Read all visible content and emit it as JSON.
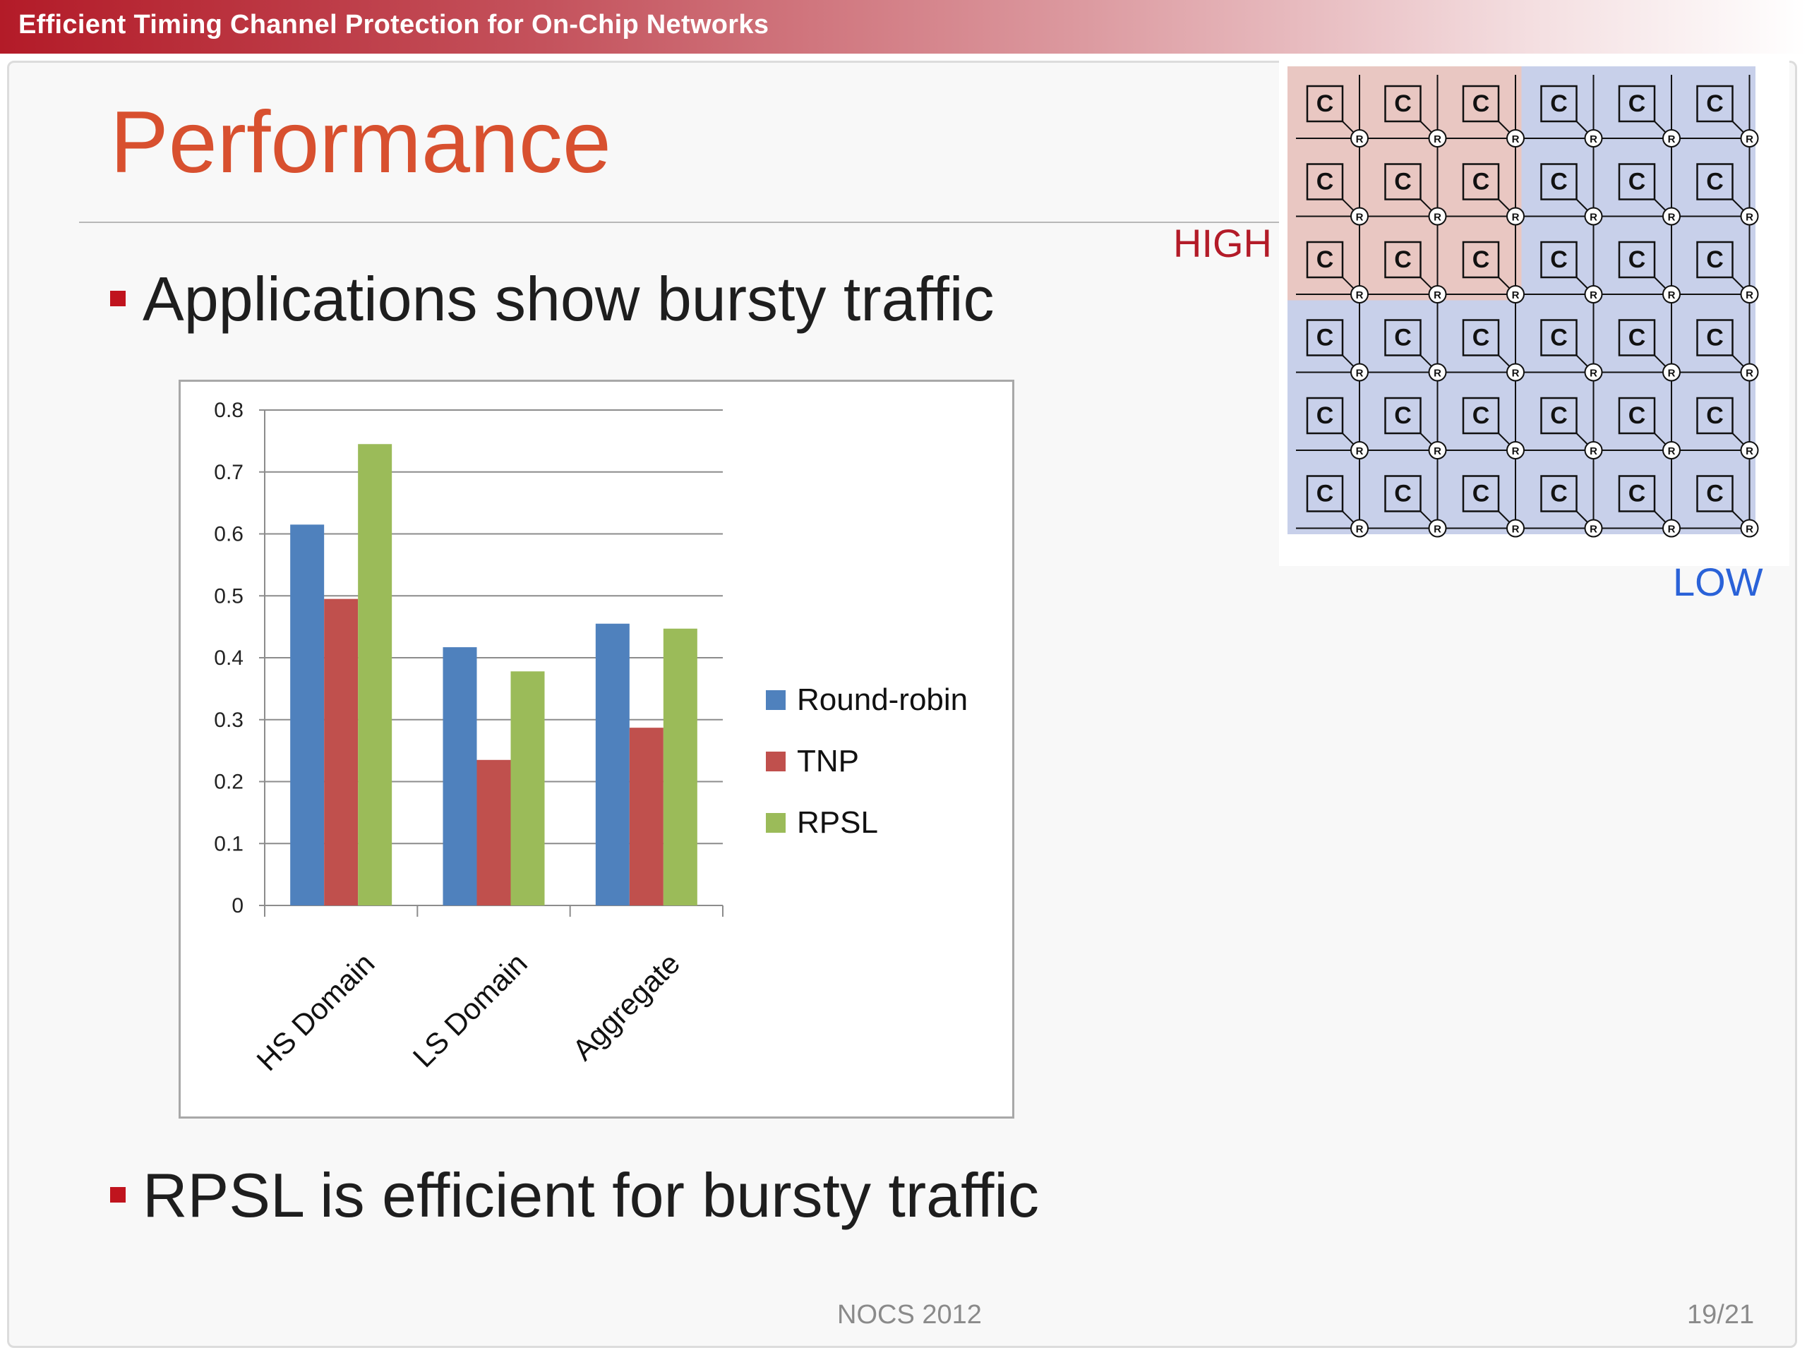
{
  "header": {
    "title": "Efficient Timing Channel Protection for On-Chip Networks"
  },
  "slide": {
    "title": "Performance",
    "bullets": [
      "Applications show bursty traffic",
      "RPSL is efficient for bursty traffic"
    ]
  },
  "diagram": {
    "core_label": "C",
    "router_label": "R",
    "high_label": "HIGH",
    "low_label": "LOW",
    "rows": 6,
    "cols": 6,
    "high_region": {
      "rows": 3,
      "cols": 3
    },
    "colors": {
      "high": "#e9c7c2",
      "low": "#c8d0ea"
    }
  },
  "footer": {
    "center": "NOCS 2012",
    "page": "19/21"
  },
  "chart_data": {
    "type": "bar",
    "categories": [
      "HS Domain",
      "LS Domain",
      "Aggregate"
    ],
    "series": [
      {
        "name": "Round-robin",
        "values": [
          0.615,
          0.417,
          0.455
        ],
        "color": "#4f81bd"
      },
      {
        "name": "TNP",
        "values": [
          0.495,
          0.235,
          0.287
        ],
        "color": "#c0504d"
      },
      {
        "name": "RPSL",
        "values": [
          0.745,
          0.378,
          0.447
        ],
        "color": "#9bbb59"
      }
    ],
    "ylim": [
      0,
      0.8
    ],
    "yticks": [
      "0",
      "0.1",
      "0.2",
      "0.3",
      "0.4",
      "0.5",
      "0.6",
      "0.7",
      "0.8"
    ],
    "grid": true,
    "legend_position": "right"
  }
}
